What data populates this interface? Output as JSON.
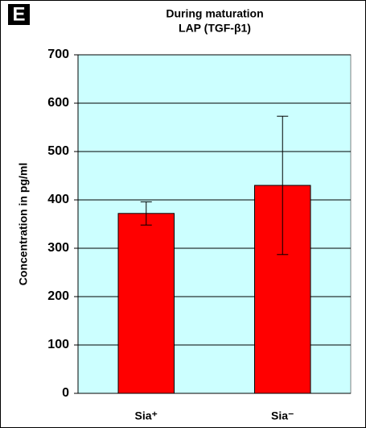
{
  "chart_data": {
    "type": "bar",
    "panel_label": "E",
    "title": [
      "During maturation",
      "LAP (TGF-β1)"
    ],
    "y_label": "Concentration in pg/ml",
    "categories": [
      "Sia⁺",
      "Sia⁻"
    ],
    "values": [
      372,
      430
    ],
    "errors": [
      24,
      143
    ],
    "color": "#ff0000",
    "ylim": [
      0,
      700
    ],
    "yticks": [
      0,
      100,
      200,
      300,
      400,
      500,
      600,
      700
    ],
    "grid": true
  }
}
